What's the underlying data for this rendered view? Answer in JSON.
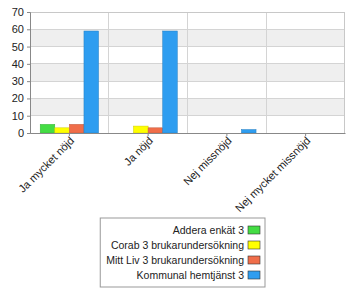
{
  "chart_data": {
    "type": "bar",
    "categories": [
      "Ja mycket nöjd",
      "Ja nöjd",
      "Nej missnöjd",
      "Nej mycket missnöjd"
    ],
    "series": [
      {
        "name": "Addera enkät 3",
        "color": "#44dd44",
        "values": [
          5,
          0,
          0,
          0
        ]
      },
      {
        "name": "Corab 3 brukarundersökning",
        "color": "#ffff00",
        "values": [
          3,
          4,
          0,
          0
        ]
      },
      {
        "name": "Mitt Liv 3 brukarundersökning",
        "color": "#f06e4a",
        "values": [
          5,
          3,
          0,
          0
        ]
      },
      {
        "name": "Kommunal hemtjänst 3",
        "color": "#2e9df0",
        "values": [
          59,
          59,
          2,
          0
        ]
      }
    ],
    "ylim": [
      0,
      70
    ],
    "yticks": [
      0,
      10,
      20,
      30,
      40,
      50,
      60,
      70
    ],
    "grid": true,
    "legend": "bottom"
  }
}
